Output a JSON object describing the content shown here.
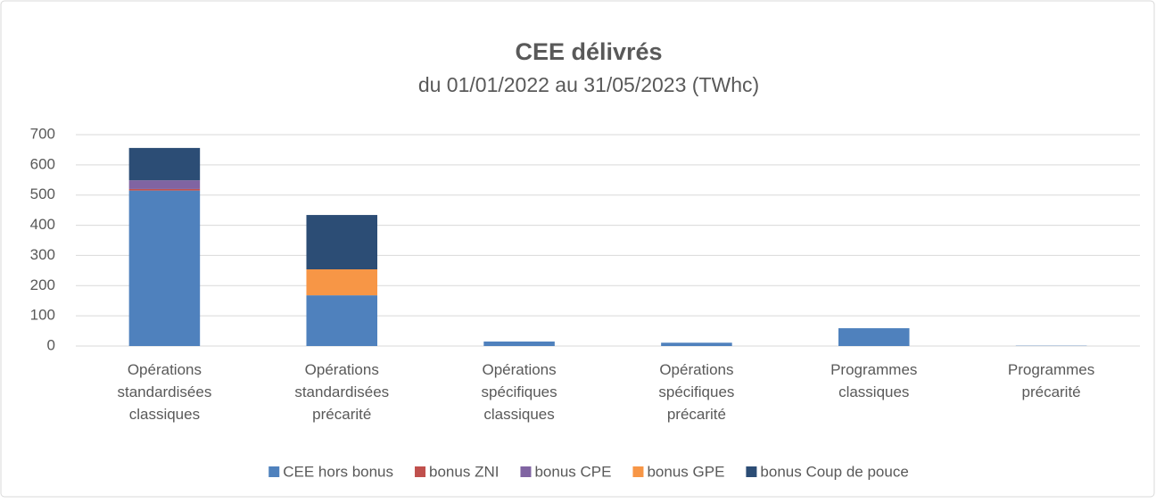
{
  "chart_data": {
    "type": "stacked_bar",
    "title": "CEE délivrés",
    "subtitle": "du 01/01/2022 au 31/05/2023 (TWhc)",
    "categories": [
      "Opérations standardisées classiques",
      "Opérations standardisées précarité",
      "Opérations spécifiques classiques",
      "Opérations spécifiques précarité",
      "Programmes classiques",
      "Programmes précarité"
    ],
    "series": [
      {
        "name": "CEE hors bonus",
        "color": "#4f81bd",
        "values": [
          515,
          168,
          15,
          11,
          59,
          1
        ]
      },
      {
        "name": "bonus ZNI",
        "color": "#c0504d",
        "values": [
          5,
          0,
          0,
          0,
          0,
          0
        ]
      },
      {
        "name": "bonus CPE",
        "color": "#8064a2",
        "values": [
          29,
          0,
          0,
          0,
          0,
          0
        ]
      },
      {
        "name": "bonus GPE",
        "color": "#f79646",
        "values": [
          0,
          86,
          0,
          0,
          0,
          0
        ]
      },
      {
        "name": "bonus Coup de pouce",
        "color": "#2c4d75",
        "values": [
          107,
          180,
          0,
          0,
          0,
          0
        ]
      }
    ],
    "ylim": [
      0,
      700
    ],
    "yticks": [
      0,
      100,
      200,
      300,
      400,
      500,
      600,
      700
    ],
    "grid": true,
    "legend": "bottom"
  }
}
